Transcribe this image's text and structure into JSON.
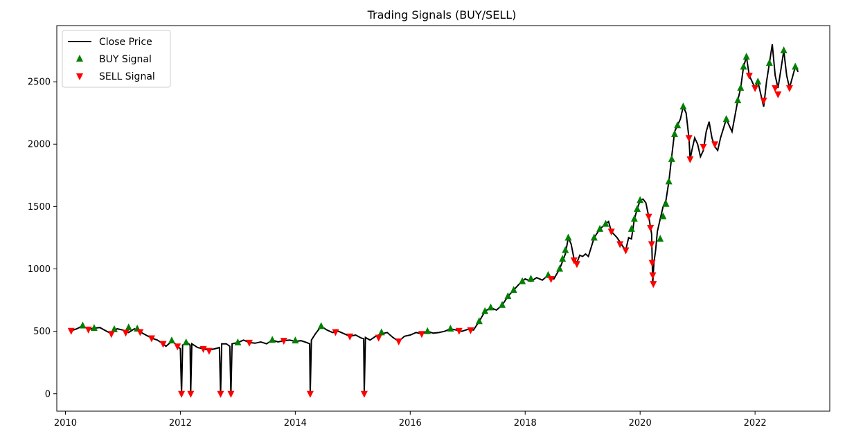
{
  "chart_data": {
    "type": "line",
    "title": "Trading Signals (BUY/SELL)",
    "xlabel": "",
    "ylabel": "",
    "xlim": [
      2009.85,
      2023.3
    ],
    "ylim": [
      -140,
      2950
    ],
    "x_ticks": [
      2010,
      2012,
      2014,
      2016,
      2018,
      2020,
      2022
    ],
    "x_tick_labels": [
      "2010",
      "2012",
      "2014",
      "2016",
      "2018",
      "2020",
      "2022"
    ],
    "y_ticks": [
      0,
      500,
      1000,
      1500,
      2000,
      2500
    ],
    "y_tick_labels": [
      "0",
      "500",
      "1000",
      "1500",
      "2000",
      "2500"
    ],
    "grid": false,
    "legend": {
      "placement": "top-left",
      "entries": [
        {
          "label": "Close Price",
          "marker": "line",
          "color": "#000000"
        },
        {
          "label": "BUY Signal",
          "marker": "triangle-up",
          "color": "#008000"
        },
        {
          "label": "SELL Signal",
          "marker": "triangle-down",
          "color": "#ff0000"
        }
      ]
    },
    "series": [
      {
        "name": "Close Price",
        "color": "#000000",
        "points": [
          [
            2010.08,
            500
          ],
          [
            2010.2,
            520
          ],
          [
            2010.3,
            545
          ],
          [
            2010.4,
            515
          ],
          [
            2010.5,
            525
          ],
          [
            2010.6,
            530
          ],
          [
            2010.7,
            505
          ],
          [
            2010.8,
            480
          ],
          [
            2010.9,
            520
          ],
          [
            2011.0,
            510
          ],
          [
            2011.1,
            490
          ],
          [
            2011.2,
            520
          ],
          [
            2011.3,
            495
          ],
          [
            2011.4,
            470
          ],
          [
            2011.5,
            445
          ],
          [
            2011.6,
            430
          ],
          [
            2011.7,
            400
          ],
          [
            2011.75,
            380
          ],
          [
            2011.85,
            420
          ],
          [
            2011.9,
            405
          ],
          [
            2011.95,
            380
          ],
          [
            2012.0,
            360
          ],
          [
            2012.02,
            0
          ],
          [
            2012.04,
            390
          ],
          [
            2012.12,
            410
          ],
          [
            2012.17,
            390
          ],
          [
            2012.18,
            0
          ],
          [
            2012.2,
            400
          ],
          [
            2012.3,
            370
          ],
          [
            2012.4,
            360
          ],
          [
            2012.5,
            350
          ],
          [
            2012.6,
            360
          ],
          [
            2012.68,
            370
          ],
          [
            2012.7,
            0
          ],
          [
            2012.72,
            400
          ],
          [
            2012.8,
            400
          ],
          [
            2012.86,
            380
          ],
          [
            2012.88,
            0
          ],
          [
            2012.9,
            400
          ],
          [
            2013.0,
            410
          ],
          [
            2013.1,
            430
          ],
          [
            2013.2,
            410
          ],
          [
            2013.3,
            405
          ],
          [
            2013.4,
            415
          ],
          [
            2013.5,
            400
          ],
          [
            2013.6,
            430
          ],
          [
            2013.7,
            415
          ],
          [
            2013.8,
            425
          ],
          [
            2013.9,
            430
          ],
          [
            2014.0,
            420
          ],
          [
            2014.1,
            425
          ],
          [
            2014.2,
            410
          ],
          [
            2014.25,
            400
          ],
          [
            2014.26,
            0
          ],
          [
            2014.28,
            430
          ],
          [
            2014.35,
            480
          ],
          [
            2014.45,
            540
          ],
          [
            2014.55,
            510
          ],
          [
            2014.65,
            490
          ],
          [
            2014.75,
            500
          ],
          [
            2014.85,
            480
          ],
          [
            2014.95,
            460
          ],
          [
            2015.05,
            470
          ],
          [
            2015.15,
            445
          ],
          [
            2015.19,
            440
          ],
          [
            2015.2,
            0
          ],
          [
            2015.22,
            450
          ],
          [
            2015.3,
            430
          ],
          [
            2015.4,
            460
          ],
          [
            2015.5,
            480
          ],
          [
            2015.6,
            490
          ],
          [
            2015.7,
            450
          ],
          [
            2015.8,
            420
          ],
          [
            2015.9,
            460
          ],
          [
            2016.0,
            470
          ],
          [
            2016.1,
            490
          ],
          [
            2016.2,
            480
          ],
          [
            2016.3,
            500
          ],
          [
            2016.4,
            485
          ],
          [
            2016.5,
            490
          ],
          [
            2016.6,
            500
          ],
          [
            2016.7,
            520
          ],
          [
            2016.8,
            510
          ],
          [
            2016.9,
            500
          ],
          [
            2017.0,
            515
          ],
          [
            2017.1,
            510
          ],
          [
            2017.2,
            580
          ],
          [
            2017.3,
            660
          ],
          [
            2017.4,
            690
          ],
          [
            2017.5,
            670
          ],
          [
            2017.6,
            710
          ],
          [
            2017.7,
            780
          ],
          [
            2017.8,
            830
          ],
          [
            2017.9,
            880
          ],
          [
            2018.0,
            920
          ],
          [
            2018.1,
            900
          ],
          [
            2018.2,
            930
          ],
          [
            2018.3,
            910
          ],
          [
            2018.4,
            950
          ],
          [
            2018.5,
            920
          ],
          [
            2018.6,
            1000
          ],
          [
            2018.7,
            1120
          ],
          [
            2018.75,
            1250
          ],
          [
            2018.8,
            1200
          ],
          [
            2018.85,
            1080
          ],
          [
            2018.9,
            1050
          ],
          [
            2018.95,
            1110
          ],
          [
            2019.0,
            1100
          ],
          [
            2019.05,
            1120
          ],
          [
            2019.1,
            1100
          ],
          [
            2019.2,
            1250
          ],
          [
            2019.3,
            1320
          ],
          [
            2019.4,
            1360
          ],
          [
            2019.45,
            1380
          ],
          [
            2019.5,
            1300
          ],
          [
            2019.6,
            1250
          ],
          [
            2019.7,
            1180
          ],
          [
            2019.75,
            1150
          ],
          [
            2019.8,
            1250
          ],
          [
            2019.85,
            1240
          ],
          [
            2019.9,
            1400
          ],
          [
            2019.95,
            1480
          ],
          [
            2020.0,
            1550
          ],
          [
            2020.05,
            1560
          ],
          [
            2020.1,
            1530
          ],
          [
            2020.15,
            1420
          ],
          [
            2020.2,
            1280
          ],
          [
            2020.22,
            880
          ],
          [
            2020.24,
            1050
          ],
          [
            2020.27,
            1150
          ],
          [
            2020.3,
            1300
          ],
          [
            2020.35,
            1400
          ],
          [
            2020.4,
            1500
          ],
          [
            2020.45,
            1550
          ],
          [
            2020.5,
            1700
          ],
          [
            2020.55,
            1900
          ],
          [
            2020.6,
            2100
          ],
          [
            2020.65,
            2150
          ],
          [
            2020.7,
            2200
          ],
          [
            2020.75,
            2300
          ],
          [
            2020.8,
            2250
          ],
          [
            2020.85,
            2050
          ],
          [
            2020.87,
            1880
          ],
          [
            2020.9,
            1950
          ],
          [
            2020.95,
            2050
          ],
          [
            2021.0,
            2000
          ],
          [
            2021.05,
            1900
          ],
          [
            2021.1,
            1950
          ],
          [
            2021.15,
            2100
          ],
          [
            2021.2,
            2180
          ],
          [
            2021.25,
            2050
          ],
          [
            2021.3,
            1980
          ],
          [
            2021.35,
            1950
          ],
          [
            2021.4,
            2050
          ],
          [
            2021.5,
            2200
          ],
          [
            2021.6,
            2100
          ],
          [
            2021.7,
            2350
          ],
          [
            2021.75,
            2450
          ],
          [
            2021.8,
            2620
          ],
          [
            2021.85,
            2700
          ],
          [
            2021.9,
            2550
          ],
          [
            2022.0,
            2450
          ],
          [
            2022.05,
            2500
          ],
          [
            2022.1,
            2400
          ],
          [
            2022.15,
            2300
          ],
          [
            2022.2,
            2500
          ],
          [
            2022.25,
            2650
          ],
          [
            2022.3,
            2800
          ],
          [
            2022.35,
            2550
          ],
          [
            2022.4,
            2450
          ],
          [
            2022.45,
            2600
          ],
          [
            2022.5,
            2750
          ],
          [
            2022.55,
            2550
          ],
          [
            2022.6,
            2450
          ],
          [
            2022.7,
            2620
          ],
          [
            2022.75,
            2580
          ]
        ]
      },
      {
        "name": "BUY Signal",
        "color": "#008000",
        "marker": "triangle-up",
        "points": [
          [
            2010.3,
            545
          ],
          [
            2010.5,
            525
          ],
          [
            2010.85,
            515
          ],
          [
            2011.1,
            530
          ],
          [
            2011.25,
            520
          ],
          [
            2011.85,
            425
          ],
          [
            2012.1,
            410
          ],
          [
            2013.0,
            410
          ],
          [
            2013.6,
            430
          ],
          [
            2014.0,
            425
          ],
          [
            2014.45,
            540
          ],
          [
            2015.5,
            490
          ],
          [
            2016.3,
            500
          ],
          [
            2016.7,
            520
          ],
          [
            2017.2,
            580
          ],
          [
            2017.3,
            660
          ],
          [
            2017.4,
            690
          ],
          [
            2017.6,
            710
          ],
          [
            2017.7,
            780
          ],
          [
            2017.8,
            830
          ],
          [
            2017.95,
            900
          ],
          [
            2018.1,
            920
          ],
          [
            2018.4,
            950
          ],
          [
            2018.6,
            1000
          ],
          [
            2018.65,
            1080
          ],
          [
            2018.7,
            1150
          ],
          [
            2018.75,
            1250
          ],
          [
            2019.2,
            1250
          ],
          [
            2019.3,
            1320
          ],
          [
            2019.4,
            1360
          ],
          [
            2019.85,
            1320
          ],
          [
            2019.9,
            1400
          ],
          [
            2019.95,
            1480
          ],
          [
            2020.0,
            1550
          ],
          [
            2020.35,
            1240
          ],
          [
            2020.4,
            1420
          ],
          [
            2020.45,
            1520
          ],
          [
            2020.5,
            1700
          ],
          [
            2020.55,
            1880
          ],
          [
            2020.6,
            2080
          ],
          [
            2020.65,
            2150
          ],
          [
            2020.75,
            2300
          ],
          [
            2021.5,
            2200
          ],
          [
            2021.7,
            2350
          ],
          [
            2021.75,
            2450
          ],
          [
            2021.8,
            2620
          ],
          [
            2021.85,
            2700
          ],
          [
            2022.05,
            2500
          ],
          [
            2022.25,
            2650
          ],
          [
            2022.5,
            2750
          ],
          [
            2022.7,
            2620
          ]
        ]
      },
      {
        "name": "SELL Signal",
        "color": "#ff0000",
        "marker": "triangle-down",
        "points": [
          [
            2010.1,
            505
          ],
          [
            2010.4,
            515
          ],
          [
            2010.8,
            480
          ],
          [
            2011.05,
            490
          ],
          [
            2011.3,
            495
          ],
          [
            2011.5,
            445
          ],
          [
            2011.7,
            400
          ],
          [
            2011.95,
            380
          ],
          [
            2012.02,
            0
          ],
          [
            2012.18,
            0
          ],
          [
            2012.4,
            360
          ],
          [
            2012.5,
            345
          ],
          [
            2012.7,
            0
          ],
          [
            2012.88,
            0
          ],
          [
            2013.2,
            410
          ],
          [
            2013.8,
            425
          ],
          [
            2014.26,
            0
          ],
          [
            2014.7,
            495
          ],
          [
            2014.95,
            460
          ],
          [
            2015.2,
            0
          ],
          [
            2015.45,
            450
          ],
          [
            2015.8,
            420
          ],
          [
            2016.2,
            480
          ],
          [
            2016.85,
            505
          ],
          [
            2017.05,
            510
          ],
          [
            2018.45,
            920
          ],
          [
            2018.85,
            1070
          ],
          [
            2018.9,
            1040
          ],
          [
            2019.5,
            1300
          ],
          [
            2019.65,
            1200
          ],
          [
            2019.75,
            1150
          ],
          [
            2020.15,
            1420
          ],
          [
            2020.18,
            1330
          ],
          [
            2020.2,
            1200
          ],
          [
            2020.21,
            1050
          ],
          [
            2020.22,
            950
          ],
          [
            2020.23,
            880
          ],
          [
            2020.85,
            2050
          ],
          [
            2020.87,
            1880
          ],
          [
            2021.1,
            1980
          ],
          [
            2021.3,
            2000
          ],
          [
            2021.9,
            2550
          ],
          [
            2022.0,
            2450
          ],
          [
            2022.15,
            2350
          ],
          [
            2022.35,
            2450
          ],
          [
            2022.4,
            2400
          ],
          [
            2022.6,
            2450
          ]
        ]
      }
    ]
  }
}
